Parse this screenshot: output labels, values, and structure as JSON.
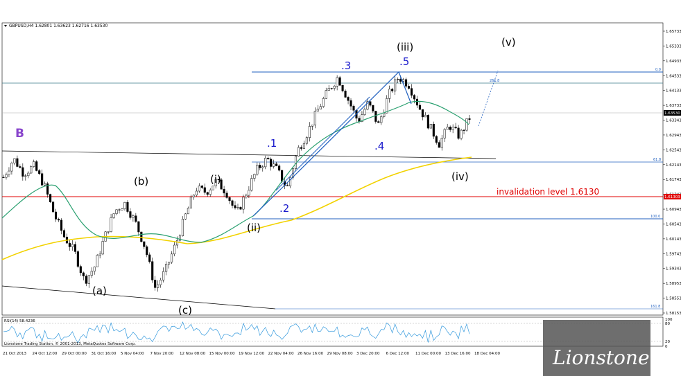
{
  "chart_data": {
    "type": "candlestick",
    "symbol_header": "GBPUSD,H4  1.62801 1.63623 1.62716 1.63530",
    "y_axis": {
      "ticks": [
        "1.65733",
        "1.65333",
        "1.64933",
        "1.64533",
        "1.64133",
        "1.63733",
        "1.63343",
        "1.62943",
        "1.62543",
        "1.62143",
        "1.61743",
        "1.61343",
        "1.60943",
        "1.60543",
        "1.60143",
        "1.59743",
        "1.59343",
        "1.58953",
        "1.58553",
        "1.58153"
      ],
      "current_price": "1.63530",
      "invalidation_price": "1.61303"
    },
    "x_axis": {
      "ticks": [
        "21 Oct 2013",
        "24 Oct 12:00",
        "29 Oct 00:00",
        "31 Oct 16:00",
        "5 Nov 04:00",
        "7 Nov 20:00",
        "12 Nov 08:00",
        "15 Nov 00:00",
        "19 Nov 12:00",
        "22 Nov 04:00",
        "26 Nov 16:00",
        "29 Nov 08:00",
        "3 Dec 20:00",
        "6 Dec 12:00",
        "11 Dec 00:00",
        "13 Dec 16:00",
        "18 Dec 04:00"
      ]
    },
    "close_path": [
      1.618,
      1.623,
      1.619,
      1.621,
      1.616,
      1.608,
      1.602,
      1.598,
      1.59,
      1.594,
      1.602,
      1.609,
      1.611,
      1.606,
      1.599,
      1.588,
      1.593,
      1.6,
      1.608,
      1.615,
      1.614,
      1.617,
      1.614,
      1.608,
      1.614,
      1.62,
      1.623,
      1.62,
      1.615,
      1.625,
      1.63,
      1.636,
      1.641,
      1.645,
      1.639,
      1.633,
      1.638,
      1.632,
      1.64,
      1.645,
      1.643,
      1.637,
      1.632,
      1.627,
      1.632,
      1.629,
      1.634
    ],
    "fib_levels": [
      {
        "label": "0.0",
        "price": 1.6473
      },
      {
        "label": "261.8",
        "price": 1.6452
      },
      {
        "label": "61.8",
        "price": 1.6215
      },
      {
        "label": "100.0",
        "price": 1.6072
      },
      {
        "label": "161.8",
        "price": 1.5835
      }
    ],
    "wave_labels": [
      "(a)",
      "(b)",
      "(c)",
      "(i)",
      "(ii)",
      "(iii)",
      "(iv)",
      "(v)",
      ".1",
      ".2",
      ".3",
      ".4",
      ".5",
      "B"
    ],
    "invalidation_text": "invalidation level 1.6130",
    "rsi": {
      "label": "RSI(14) 58.4236",
      "ticks": [
        "100",
        "80",
        "20",
        "0"
      ]
    },
    "copyright": "Lionstone Trading Station, © 2001-2013, MetaQuotes Software Corp.",
    "watermark": "Lionstone"
  }
}
